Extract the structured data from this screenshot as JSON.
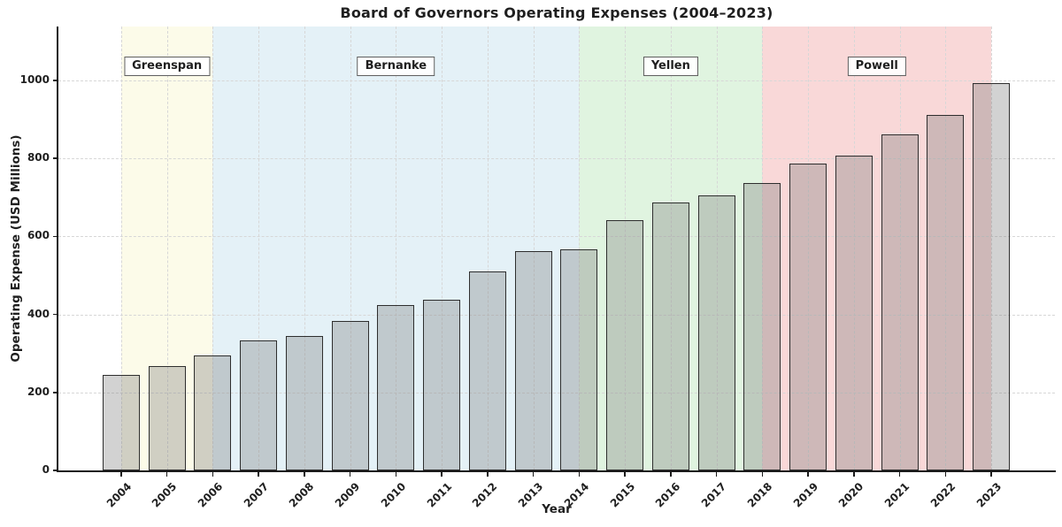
{
  "page": {
    "background": "#ffffff"
  },
  "style": {
    "text_color": "#1f1f1f",
    "spine_color": "#1a1a1a",
    "grid_color": "#d7d7d7",
    "era_box_border": "#5f5f5f",
    "era_box_background": "#ffffff"
  },
  "chart_data": {
    "type": "bar",
    "title": "Board of Governors Operating Expenses (2004–2023)",
    "xlabel": "Year",
    "ylabel": "Operating Expense (USD Millions)",
    "categories": [
      2004,
      2005,
      2006,
      2007,
      2008,
      2009,
      2010,
      2011,
      2012,
      2013,
      2014,
      2015,
      2016,
      2017,
      2018,
      2019,
      2020,
      2021,
      2022,
      2023
    ],
    "values": [
      244,
      268,
      294,
      334,
      344,
      384,
      423,
      438,
      509,
      563,
      566,
      642,
      686,
      706,
      737,
      786,
      808,
      861,
      911,
      994
    ],
    "ylim": [
      0,
      1138
    ],
    "yticks": [
      0,
      200,
      400,
      600,
      800,
      1000
    ],
    "xlim": [
      2002.63,
      2024.39
    ],
    "grid": {
      "style": "dashed",
      "color": "#d7d7d7",
      "on": true
    },
    "legend": "none",
    "bar_style": {
      "fill": "rgba(127,127,127,0.35)",
      "edge": "#2e2e2e",
      "width_years": 0.81
    },
    "regions": [
      {
        "label": "Greenspan",
        "from": 2004,
        "to": 2006,
        "color": "#FCFBE9",
        "label_x": 2005
      },
      {
        "label": "Bernanke",
        "from": 2006,
        "to": 2014,
        "color": "#E4F1F7",
        "label_x": 2010
      },
      {
        "label": "Yellen",
        "from": 2014,
        "to": 2018,
        "color": "#E0F4E0",
        "label_x": 2016
      },
      {
        "label": "Powell",
        "from": 2018,
        "to": 2023,
        "color": "#F9D8D8",
        "label_x": 2020.5
      }
    ]
  }
}
